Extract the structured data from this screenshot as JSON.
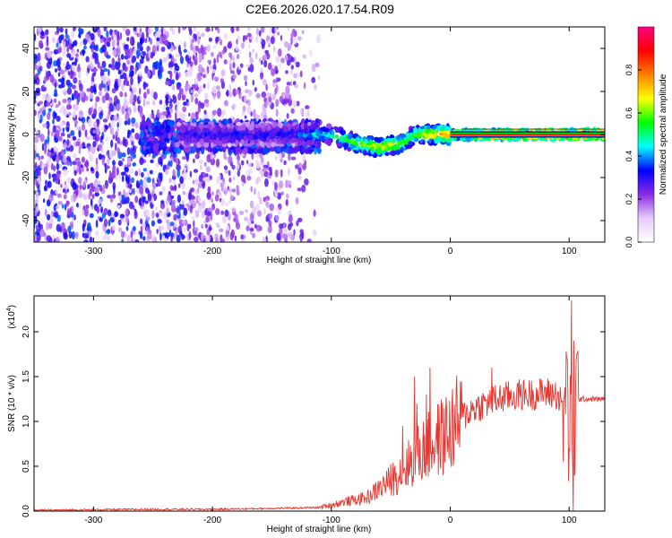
{
  "title": "C2E6.2026.020.17.54.R09",
  "chart_data": [
    {
      "type": "heatmap",
      "xlabel": "Height of straight line (km)",
      "ylabel": "Frequency (Hz)",
      "xlim": [
        -350,
        130
      ],
      "ylim": [
        -50,
        50
      ],
      "xticks": [
        "-300",
        "-200",
        "-100",
        "0",
        "100"
      ],
      "yticks": [
        "-40",
        "-20",
        "0",
        "20",
        "40"
      ],
      "colorbar": {
        "label": "Normalized spectral amplitude",
        "range": [
          0,
          1
        ],
        "ticks": [
          "0.0",
          "0.2",
          "0.4",
          "0.6",
          "0.8"
        ],
        "colors": [
          "#ffffff",
          "#e6ccff",
          "#8a2be2",
          "#0000ff",
          "#00ffff",
          "#00ff00",
          "#ffff00",
          "#ff8000",
          "#ff0000",
          "#ff0080"
        ]
      },
      "ridge": [
        {
          "x": -130,
          "f": 0,
          "a": 0.35
        },
        {
          "x": -110,
          "f": 0,
          "a": 0.45
        },
        {
          "x": -100,
          "f": 0,
          "a": 0.5
        },
        {
          "x": -90,
          "f": -2,
          "a": 0.55
        },
        {
          "x": -80,
          "f": -4,
          "a": 0.6
        },
        {
          "x": -70,
          "f": -5,
          "a": 0.65
        },
        {
          "x": -60,
          "f": -6,
          "a": 0.7
        },
        {
          "x": -50,
          "f": -5,
          "a": 0.7
        },
        {
          "x": -40,
          "f": -4,
          "a": 0.6
        },
        {
          "x": -30,
          "f": 0,
          "a": 0.55
        },
        {
          "x": -20,
          "f": 0,
          "a": 0.7
        },
        {
          "x": -10,
          "f": 0,
          "a": 0.75
        },
        {
          "x": 0,
          "f": 0,
          "a": 0.8
        },
        {
          "x": 20,
          "f": 0,
          "a": 0.9
        },
        {
          "x": 50,
          "f": 0,
          "a": 0.95
        },
        {
          "x": 90,
          "f": 0,
          "a": 1.0
        },
        {
          "x": 130,
          "f": 0,
          "a": 1.0
        }
      ]
    },
    {
      "type": "line",
      "xlabel": "Height of straight line (km)",
      "ylabel": "SNR (10 * v/v)",
      "scale_label": "(x10",
      "scale_exp": "4",
      "scale_close": ")",
      "xlim": [
        -350,
        130
      ],
      "ylim": [
        0,
        2.4
      ],
      "xticks": [
        "-300",
        "-200",
        "-100",
        "0",
        "100"
      ],
      "yticks": [
        "0.0",
        "0.5",
        "1.0",
        "1.5",
        "2.0"
      ],
      "series": [
        {
          "color": "#e8352f",
          "envelope": [
            {
              "x": -350,
              "y": 0.01
            },
            {
              "x": -250,
              "y": 0.02
            },
            {
              "x": -200,
              "y": 0.02
            },
            {
              "x": -150,
              "y": 0.03
            },
            {
              "x": -110,
              "y": 0.04
            },
            {
              "x": -90,
              "y": 0.1
            },
            {
              "x": -70,
              "y": 0.15
            },
            {
              "x": -60,
              "y": 0.25
            },
            {
              "x": -50,
              "y": 0.35
            },
            {
              "x": -40,
              "y": 0.45
            },
            {
              "x": -30,
              "y": 0.6
            },
            {
              "x": -20,
              "y": 0.7
            },
            {
              "x": -10,
              "y": 0.8
            },
            {
              "x": 0,
              "y": 0.9
            },
            {
              "x": 10,
              "y": 1.05
            },
            {
              "x": 20,
              "y": 1.15
            },
            {
              "x": 30,
              "y": 1.2
            },
            {
              "x": 40,
              "y": 1.25
            },
            {
              "x": 50,
              "y": 1.28
            },
            {
              "x": 60,
              "y": 1.3
            },
            {
              "x": 70,
              "y": 1.3
            },
            {
              "x": 80,
              "y": 1.32
            },
            {
              "x": 90,
              "y": 1.3
            },
            {
              "x": 100,
              "y": 1.0
            },
            {
              "x": 103,
              "y": 0.05
            },
            {
              "x": 106,
              "y": 1.25
            },
            {
              "x": 130,
              "y": 1.25
            }
          ],
          "spikes": [
            {
              "x": -40,
              "y": 0.95
            },
            {
              "x": -30,
              "y": 1.5
            },
            {
              "x": -28,
              "y": 1.2
            },
            {
              "x": -20,
              "y": 1.3
            },
            {
              "x": -17,
              "y": 1.6
            },
            {
              "x": 35,
              "y": 1.6
            },
            {
              "x": 98,
              "y": 1.7
            },
            {
              "x": 102,
              "y": 2.35
            },
            {
              "x": 104,
              "y": 1.9
            }
          ]
        }
      ]
    }
  ]
}
